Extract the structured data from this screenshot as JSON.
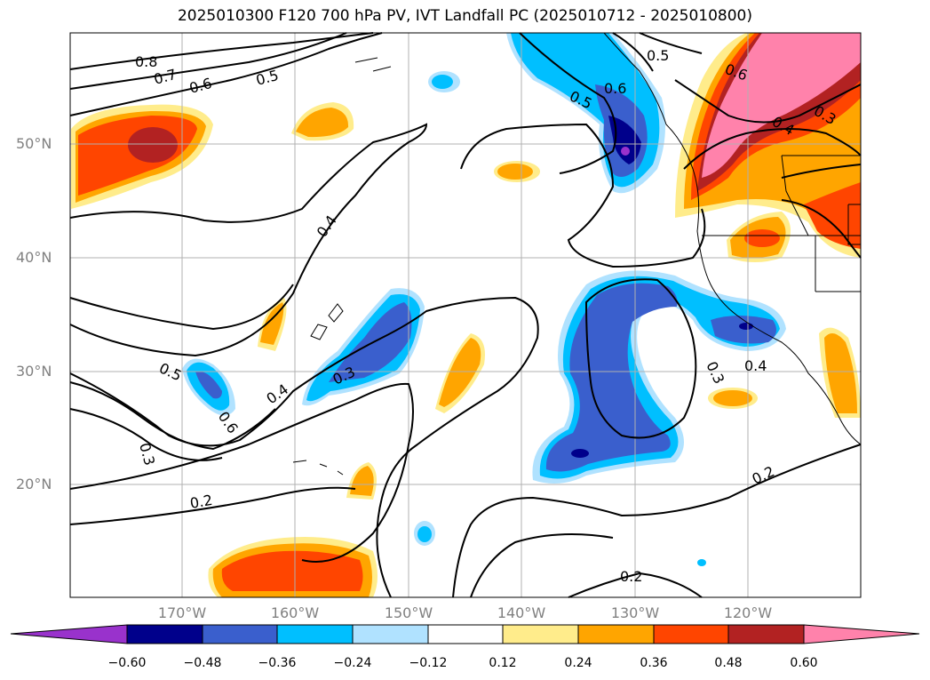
{
  "title": "2025010300 F120 700 hPa PV, IVT Landfall PC (2025010712 - 2025010800)",
  "map": {
    "lat_labels": [
      "50°N",
      "40°N",
      "30°N",
      "20°N"
    ],
    "lon_labels": [
      "170°W",
      "160°W",
      "150°W",
      "140°W",
      "130°W",
      "120°W"
    ],
    "contour_labels": [
      "0.8",
      "0.7",
      "0.6",
      "0.5",
      "0.5",
      "0.6",
      "0.5",
      "0.4",
      "0.6",
      "0.3",
      "0.4",
      "0.5",
      "0.6",
      "0.3",
      "0.4",
      "0.3",
      "0.3",
      "0.4",
      "0.2",
      "0.2",
      "0.2"
    ],
    "shading_colors": {
      "neg_060_plus": "#9932cc",
      "neg_048": "#00008b",
      "neg_036": "#3a5fcd",
      "neg_024": "#00bfff",
      "neg_012": "#b0e2ff",
      "neutral": "#ffffff",
      "pos_012": "#ffec8b",
      "pos_024": "#ffa500",
      "pos_036": "#ff4500",
      "pos_048": "#b22222",
      "pos_060_plus": "#ff82ab"
    }
  },
  "colorbar": {
    "tick_labels": [
      "−0.60",
      "−0.48",
      "−0.36",
      "−0.24",
      "−0.12",
      "0.12",
      "0.24",
      "0.36",
      "0.48",
      "0.60"
    ],
    "segment_colors": [
      "#9932cc",
      "#00008b",
      "#3a5fcd",
      "#00bfff",
      "#b0e2ff",
      "#ffffff",
      "#ffec8b",
      "#ffa500",
      "#ff4500",
      "#b22222",
      "#ff82ab"
    ]
  }
}
